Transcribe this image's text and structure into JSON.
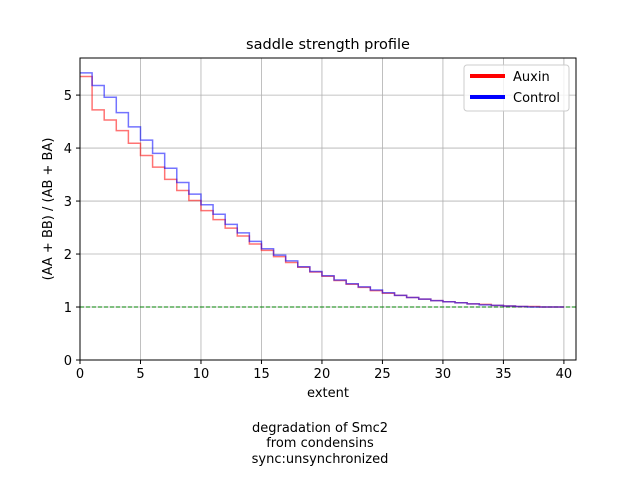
{
  "chart_data": {
    "type": "line",
    "step": true,
    "title": "saddle strength profile",
    "xlabel": "extent",
    "ylabel": "(AA + BB) / (AB + BA)",
    "xlim": [
      0,
      41
    ],
    "ylim": [
      0,
      5.7
    ],
    "xticks": [
      0,
      5,
      10,
      15,
      20,
      25,
      30,
      35,
      40
    ],
    "yticks": [
      0,
      1,
      2,
      3,
      4,
      5
    ],
    "grid": true,
    "legend_position": "top-right",
    "reference_line": {
      "y": 1,
      "color": "#008000",
      "style": "dashed"
    },
    "x": [
      0,
      1,
      2,
      3,
      4,
      5,
      6,
      7,
      8,
      9,
      10,
      11,
      12,
      13,
      14,
      15,
      16,
      17,
      18,
      19,
      20,
      21,
      22,
      23,
      24,
      25,
      26,
      27,
      28,
      29,
      30,
      31,
      32,
      33,
      34,
      35,
      36,
      37,
      38,
      39
    ],
    "series": [
      {
        "name": "Auxin",
        "color": "#ff0000",
        "values": [
          5.35,
          4.72,
          4.53,
          4.33,
          4.09,
          3.86,
          3.64,
          3.41,
          3.2,
          3.01,
          2.82,
          2.65,
          2.49,
          2.34,
          2.19,
          2.07,
          1.95,
          1.84,
          1.75,
          1.66,
          1.58,
          1.5,
          1.43,
          1.37,
          1.31,
          1.26,
          1.22,
          1.18,
          1.15,
          1.12,
          1.1,
          1.08,
          1.06,
          1.05,
          1.03,
          1.02,
          1.01,
          1.01,
          1.0,
          1.0
        ]
      },
      {
        "name": "Control",
        "color": "#0000ff",
        "values": [
          5.42,
          5.18,
          4.96,
          4.67,
          4.4,
          4.15,
          3.9,
          3.62,
          3.35,
          3.13,
          2.93,
          2.75,
          2.56,
          2.4,
          2.24,
          2.1,
          1.98,
          1.87,
          1.76,
          1.67,
          1.59,
          1.51,
          1.44,
          1.38,
          1.32,
          1.27,
          1.22,
          1.18,
          1.15,
          1.12,
          1.1,
          1.08,
          1.06,
          1.04,
          1.03,
          1.02,
          1.01,
          1.0,
          1.0,
          1.0
        ]
      }
    ]
  },
  "caption": {
    "line1": "degradation of Smc2",
    "line2": "from condensins",
    "line3": "sync:unsynchronized"
  }
}
